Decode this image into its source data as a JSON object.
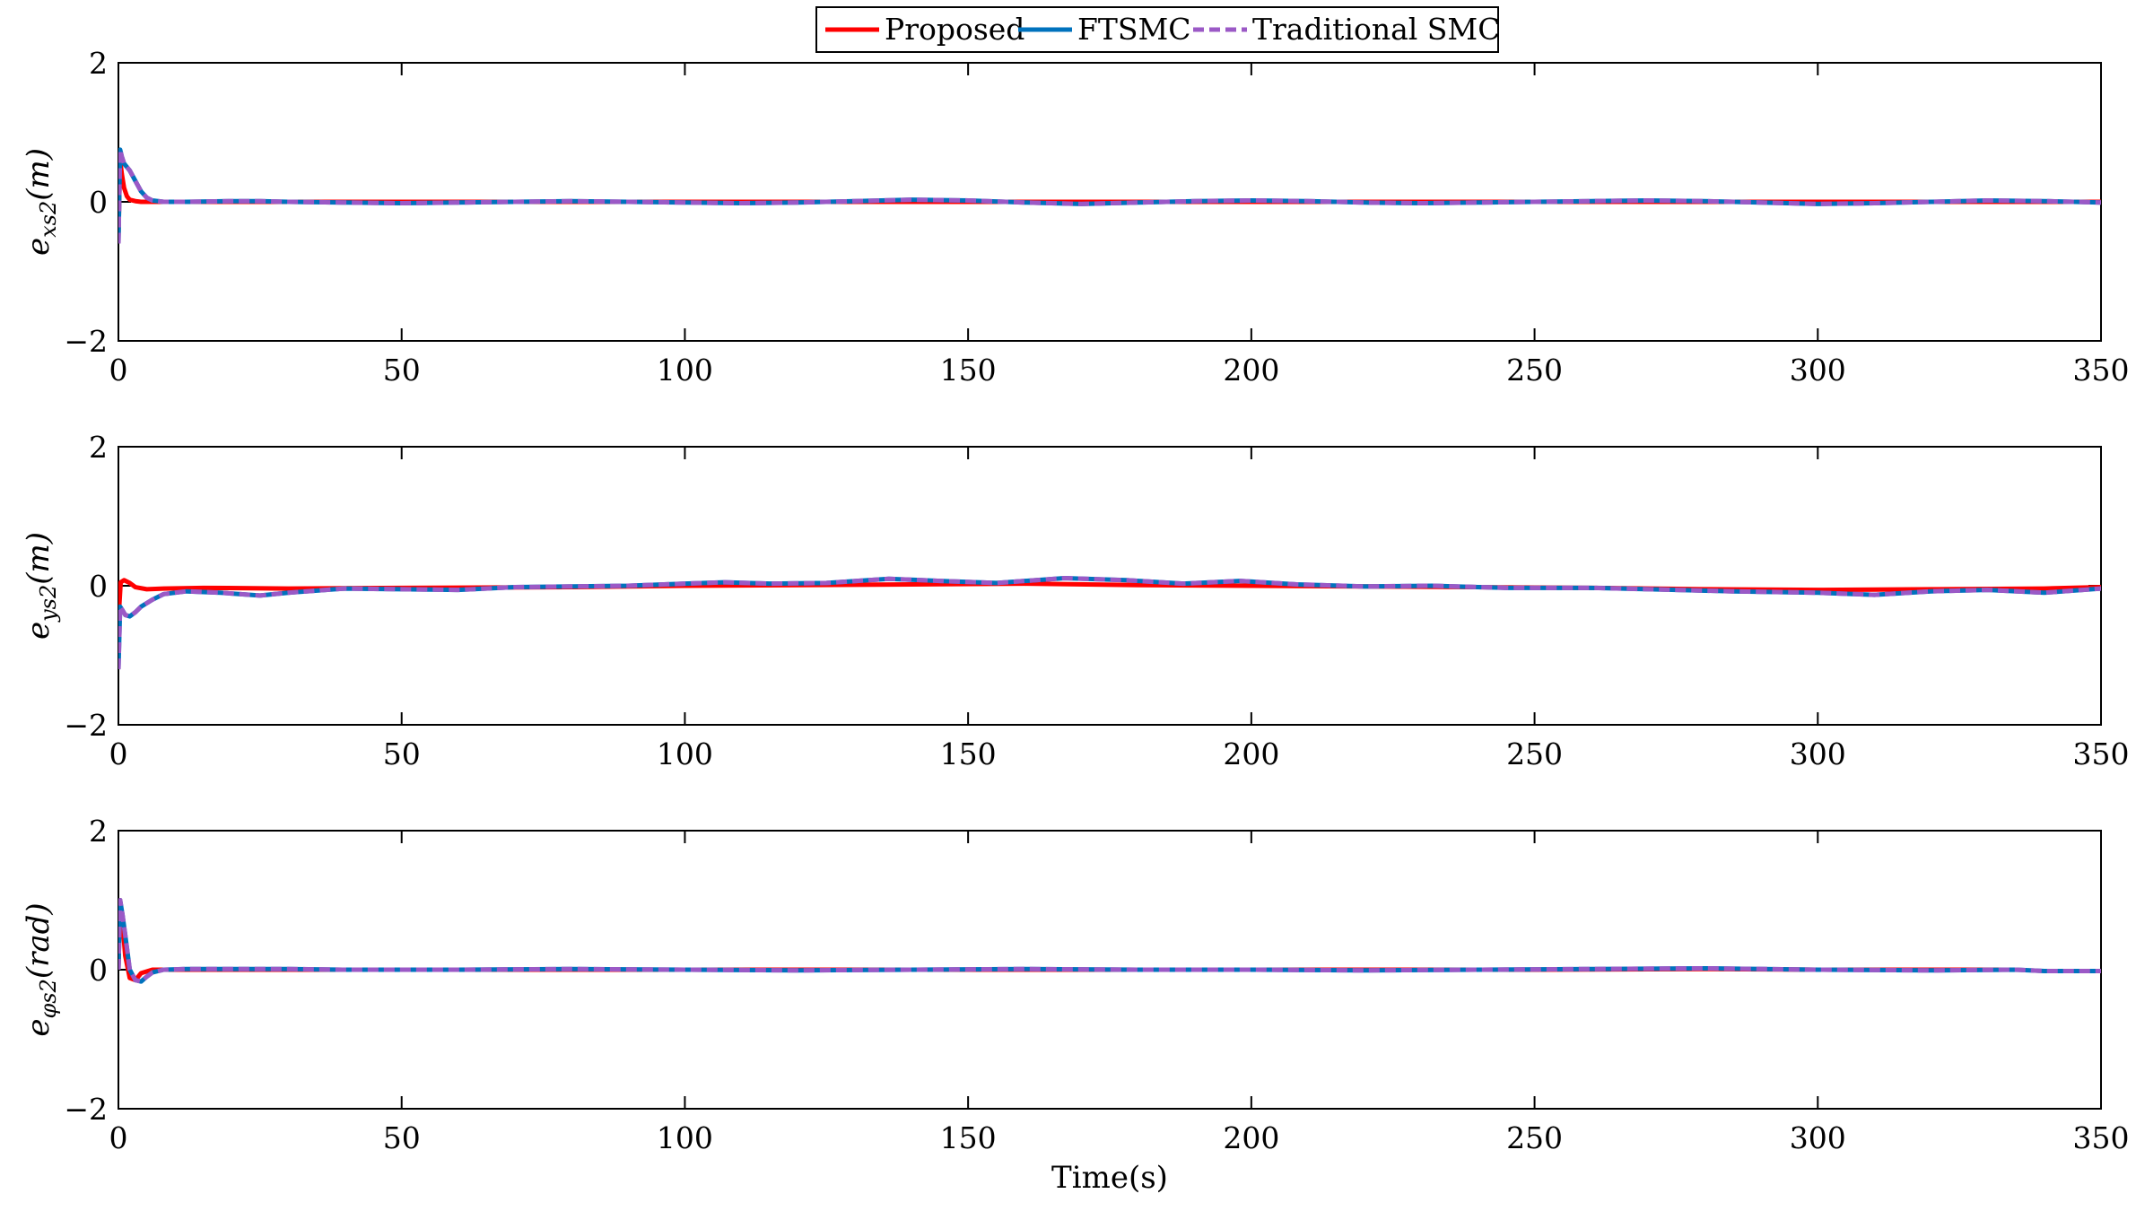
{
  "chart_data": [
    {
      "type": "line",
      "ylabel": "e_{xs2}(m)",
      "ylabel_main": "e",
      "ylabel_sub": "xs2",
      "ylabel_unit": "(m)",
      "xlabel": "",
      "xlim": [
        0,
        350
      ],
      "ylim": [
        -2,
        2
      ],
      "xticks": [
        0,
        50,
        100,
        150,
        200,
        250,
        300,
        350
      ],
      "yticks": [
        -2,
        0,
        2
      ],
      "xtick_labels": [
        "0",
        "50",
        "100",
        "150",
        "200",
        "250",
        "300",
        "350"
      ],
      "ytick_labels": [
        "−2",
        "0",
        "2"
      ],
      "grid": false,
      "series": [
        {
          "name": "Proposed",
          "color": "#ff0000",
          "style": "solid",
          "x": [
            0,
            0.3,
            0.6,
            1,
            1.5,
            2,
            3,
            4,
            5,
            8,
            20,
            50,
            100,
            150,
            200,
            250,
            300,
            350
          ],
          "y": [
            -0.5,
            0.6,
            0.4,
            0.2,
            0.08,
            0.03,
            0.01,
            0.0,
            0.0,
            0.0,
            0.0,
            0.0,
            0.0,
            0.0,
            0.0,
            0.0,
            0.0,
            0.0
          ]
        },
        {
          "name": "FTSMC",
          "color": "#0072bd",
          "style": "solid",
          "x": [
            0,
            0.3,
            0.6,
            1,
            2,
            3,
            4,
            5,
            6,
            8,
            12,
            20,
            25,
            30,
            40,
            50,
            60,
            70,
            80,
            90,
            100,
            110,
            120,
            130,
            140,
            150,
            160,
            170,
            180,
            190,
            200,
            210,
            220,
            230,
            240,
            250,
            260,
            270,
            280,
            290,
            300,
            310,
            320,
            330,
            340,
            350
          ],
          "y": [
            -0.6,
            0.75,
            0.65,
            0.55,
            0.45,
            0.3,
            0.15,
            0.06,
            0.02,
            0.0,
            0.0,
            0.01,
            0.01,
            0.0,
            -0.01,
            -0.02,
            -0.01,
            0.0,
            0.01,
            0.0,
            -0.01,
            -0.02,
            -0.01,
            0.01,
            0.03,
            0.02,
            -0.01,
            -0.03,
            -0.01,
            0.01,
            0.02,
            0.01,
            -0.01,
            -0.02,
            -0.01,
            0.0,
            0.01,
            0.02,
            0.01,
            -0.01,
            -0.03,
            -0.02,
            0.0,
            0.02,
            0.01,
            -0.01
          ]
        },
        {
          "name": "Traditional SMC",
          "color": "#9b59c6",
          "style": "dash",
          "x": [
            0,
            0.3,
            0.6,
            1,
            2,
            3,
            4,
            5,
            6,
            8,
            12,
            20,
            25,
            30,
            40,
            50,
            60,
            70,
            80,
            90,
            100,
            110,
            120,
            130,
            140,
            150,
            160,
            170,
            180,
            190,
            200,
            210,
            220,
            230,
            240,
            250,
            260,
            270,
            280,
            290,
            300,
            310,
            320,
            330,
            340,
            350
          ],
          "y": [
            -0.6,
            0.75,
            0.65,
            0.55,
            0.45,
            0.3,
            0.15,
            0.06,
            0.02,
            0.0,
            0.0,
            0.01,
            0.01,
            0.0,
            -0.01,
            -0.02,
            -0.01,
            0.0,
            0.01,
            0.0,
            -0.01,
            -0.02,
            -0.01,
            0.01,
            0.03,
            0.02,
            -0.01,
            -0.03,
            -0.01,
            0.01,
            0.02,
            0.01,
            -0.01,
            -0.02,
            -0.01,
            0.0,
            0.01,
            0.02,
            0.01,
            -0.01,
            -0.03,
            -0.02,
            0.0,
            0.02,
            0.01,
            -0.01
          ]
        }
      ]
    },
    {
      "type": "line",
      "ylabel": "e_{ys2}(m)",
      "ylabel_main": "e",
      "ylabel_sub": "ys2",
      "ylabel_unit": "(m)",
      "xlabel": "",
      "xlim": [
        0,
        350
      ],
      "ylim": [
        -2,
        2
      ],
      "xticks": [
        0,
        50,
        100,
        150,
        200,
        250,
        300,
        350
      ],
      "yticks": [
        -2,
        0,
        2
      ],
      "xtick_labels": [
        "0",
        "50",
        "100",
        "150",
        "200",
        "250",
        "300",
        "350"
      ],
      "ytick_labels": [
        "−2",
        "0",
        "2"
      ],
      "grid": false,
      "series": [
        {
          "name": "Proposed",
          "color": "#ff0000",
          "style": "solid",
          "x": [
            0,
            0.4,
            1,
            2,
            3,
            5,
            8,
            15,
            30,
            50,
            80,
            100,
            120,
            140,
            160,
            180,
            200,
            220,
            240,
            260,
            280,
            300,
            320,
            340,
            350
          ],
          "y": [
            -0.5,
            0.05,
            0.08,
            0.04,
            -0.02,
            -0.05,
            -0.04,
            -0.03,
            -0.04,
            -0.03,
            -0.02,
            0.0,
            0.01,
            0.02,
            0.03,
            0.01,
            0.0,
            -0.01,
            -0.02,
            -0.03,
            -0.05,
            -0.06,
            -0.05,
            -0.04,
            -0.02
          ]
        },
        {
          "name": "FTSMC",
          "color": "#0072bd",
          "style": "solid",
          "x": [
            0,
            0.3,
            0.7,
            1.2,
            2,
            3,
            4,
            6,
            8,
            12,
            18,
            25,
            30,
            40,
            50,
            60,
            70,
            80,
            90,
            100,
            107,
            115,
            125,
            136,
            145,
            155,
            167,
            178,
            188,
            198,
            208,
            220,
            232,
            245,
            260,
            275,
            285,
            300,
            310,
            320,
            330,
            340,
            350
          ],
          "y": [
            -1.2,
            -0.3,
            -0.35,
            -0.42,
            -0.44,
            -0.38,
            -0.3,
            -0.2,
            -0.12,
            -0.08,
            -0.1,
            -0.14,
            -0.1,
            -0.04,
            -0.05,
            -0.06,
            -0.02,
            -0.01,
            0.0,
            0.03,
            0.05,
            0.03,
            0.04,
            0.1,
            0.07,
            0.04,
            0.11,
            0.08,
            0.03,
            0.07,
            0.02,
            -0.01,
            0.0,
            -0.03,
            -0.03,
            -0.06,
            -0.08,
            -0.1,
            -0.13,
            -0.08,
            -0.06,
            -0.1,
            -0.04
          ]
        },
        {
          "name": "Traditional SMC",
          "color": "#9b59c6",
          "style": "dash",
          "x": [
            0,
            0.3,
            0.7,
            1.2,
            2,
            3,
            4,
            6,
            8,
            12,
            18,
            25,
            30,
            40,
            50,
            60,
            70,
            80,
            90,
            100,
            107,
            115,
            125,
            136,
            145,
            155,
            167,
            178,
            188,
            198,
            208,
            220,
            232,
            245,
            260,
            275,
            285,
            300,
            310,
            320,
            330,
            340,
            350
          ],
          "y": [
            -1.2,
            -0.3,
            -0.35,
            -0.42,
            -0.44,
            -0.38,
            -0.3,
            -0.2,
            -0.12,
            -0.08,
            -0.1,
            -0.14,
            -0.1,
            -0.04,
            -0.05,
            -0.06,
            -0.02,
            -0.01,
            0.0,
            0.03,
            0.05,
            0.03,
            0.04,
            0.1,
            0.07,
            0.04,
            0.11,
            0.08,
            0.03,
            0.07,
            0.02,
            -0.01,
            0.0,
            -0.03,
            -0.03,
            -0.06,
            -0.08,
            -0.1,
            -0.13,
            -0.08,
            -0.06,
            -0.1,
            -0.04
          ]
        }
      ]
    },
    {
      "type": "line",
      "ylabel": "e_{φs2}(rad)",
      "ylabel_main": "e",
      "ylabel_sub": "φs2",
      "ylabel_unit": "(rad)",
      "xlabel": "Time(s)",
      "xlim": [
        0,
        350
      ],
      "ylim": [
        -2,
        2
      ],
      "xticks": [
        0,
        50,
        100,
        150,
        200,
        250,
        300,
        350
      ],
      "yticks": [
        -2,
        0,
        2
      ],
      "xtick_labels": [
        "0",
        "50",
        "100",
        "150",
        "200",
        "250",
        "300",
        "350"
      ],
      "ytick_labels": [
        "−2",
        "0",
        "2"
      ],
      "grid": false,
      "series": [
        {
          "name": "Proposed",
          "color": "#ff0000",
          "style": "solid",
          "x": [
            0,
            0.3,
            0.7,
            1.2,
            2,
            3,
            4,
            6,
            10,
            30,
            60,
            100,
            150,
            200,
            250,
            280,
            300,
            335
          ],
          "y": [
            0.0,
            1.0,
            0.7,
            0.2,
            -0.12,
            -0.15,
            -0.05,
            0.0,
            0.0,
            0.0,
            0.0,
            0.0,
            0.0,
            0.0,
            0.0,
            0.01,
            0.0,
            0.0
          ]
        },
        {
          "name": "FTSMC",
          "color": "#0072bd",
          "style": "solid",
          "x": [
            0,
            0.3,
            0.7,
            1.2,
            2,
            3,
            4,
            5,
            6,
            8,
            12,
            20,
            30,
            40,
            60,
            80,
            100,
            120,
            140,
            160,
            180,
            200,
            220,
            240,
            260,
            280,
            300,
            320,
            335,
            340,
            350
          ],
          "y": [
            0.0,
            1.0,
            0.8,
            0.5,
            0.0,
            -0.15,
            -0.17,
            -0.1,
            -0.04,
            0.0,
            0.01,
            0.01,
            0.01,
            0.0,
            0.0,
            0.01,
            0.0,
            -0.01,
            0.0,
            0.01,
            0.0,
            0.0,
            -0.01,
            0.0,
            0.01,
            0.02,
            0.0,
            -0.01,
            0.0,
            -0.02,
            -0.02
          ]
        },
        {
          "name": "Traditional SMC",
          "color": "#9b59c6",
          "style": "dash",
          "x": [
            0,
            0.3,
            0.7,
            1.2,
            2,
            3,
            4,
            5,
            6,
            8,
            12,
            20,
            30,
            40,
            60,
            80,
            100,
            120,
            140,
            160,
            180,
            200,
            220,
            240,
            260,
            280,
            300,
            320,
            335,
            340,
            350
          ],
          "y": [
            0.0,
            1.0,
            0.8,
            0.5,
            0.0,
            -0.15,
            -0.17,
            -0.1,
            -0.04,
            0.0,
            0.01,
            0.01,
            0.01,
            0.0,
            0.0,
            0.01,
            0.0,
            -0.01,
            0.0,
            0.01,
            0.0,
            0.0,
            -0.01,
            0.0,
            0.01,
            0.02,
            0.0,
            -0.01,
            0.0,
            -0.02,
            -0.02
          ]
        }
      ]
    }
  ],
  "legend": {
    "placement": "top-center",
    "entries": [
      {
        "label": "Proposed",
        "color": "#ff0000",
        "style": "solid"
      },
      {
        "label": "FTSMC",
        "color": "#0072bd",
        "style": "solid"
      },
      {
        "label": "Traditional SMC",
        "color": "#9b59c6",
        "style": "dash"
      }
    ]
  }
}
